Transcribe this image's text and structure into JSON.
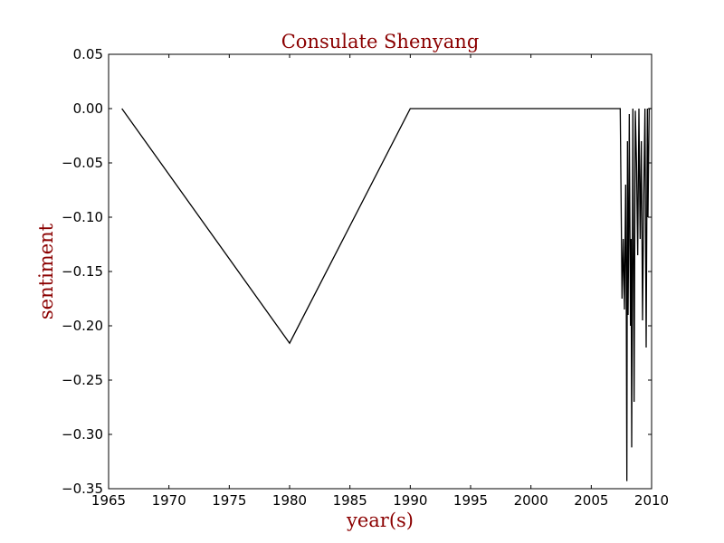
{
  "chart_data": {
    "type": "line",
    "title": "Consulate Shenyang",
    "xlabel": "year(s)",
    "ylabel": "sentiment",
    "xlim": [
      1965,
      2010
    ],
    "ylim": [
      -0.35,
      0.05
    ],
    "xticks": [
      1965,
      1970,
      1975,
      1980,
      1985,
      1990,
      1995,
      2000,
      2005,
      2010
    ],
    "xtick_labels": [
      "1965",
      "1970",
      "1975",
      "1980",
      "1985",
      "1990",
      "1995",
      "2000",
      "2005",
      "2010"
    ],
    "yticks": [
      0.05,
      0.0,
      -0.05,
      -0.1,
      -0.15,
      -0.2,
      -0.25,
      -0.3,
      -0.35
    ],
    "ytick_labels": [
      "0.05",
      "0.00",
      "−0.05",
      "−0.10",
      "−0.15",
      "−0.20",
      "−0.25",
      "−0.30",
      "−0.35"
    ],
    "grid": false,
    "colors": {
      "line": "#000000",
      "label_text": "#8b0000",
      "axes": "#000000"
    },
    "series": [
      {
        "x": [
          1966.1,
          1980.0,
          1990.0,
          2007.2,
          2007.4,
          2007.55,
          2007.65,
          2007.75,
          2007.85,
          2007.9,
          2007.95,
          2008.0,
          2008.05,
          2008.1,
          2008.15,
          2008.25,
          2008.3,
          2008.35,
          2008.45,
          2008.55,
          2008.65,
          2008.75,
          2008.85,
          2008.95,
          2009.05,
          2009.15,
          2009.25,
          2009.35,
          2009.45,
          2009.55,
          2009.65,
          2009.7,
          2009.8,
          2009.9,
          2009.95,
          2010.0
        ],
        "y": [
          0.0,
          -0.216,
          0.0,
          0.0,
          0.0,
          -0.175,
          -0.12,
          -0.185,
          -0.07,
          -0.17,
          -0.343,
          -0.03,
          -0.19,
          -0.12,
          -0.005,
          -0.2,
          -0.12,
          -0.312,
          0.0,
          -0.27,
          -0.002,
          -0.05,
          -0.135,
          0.0,
          -0.12,
          -0.03,
          -0.195,
          -0.08,
          0.0,
          -0.22,
          0.0,
          -0.1,
          0.0,
          0.0,
          0.0,
          0.0
        ]
      }
    ]
  }
}
